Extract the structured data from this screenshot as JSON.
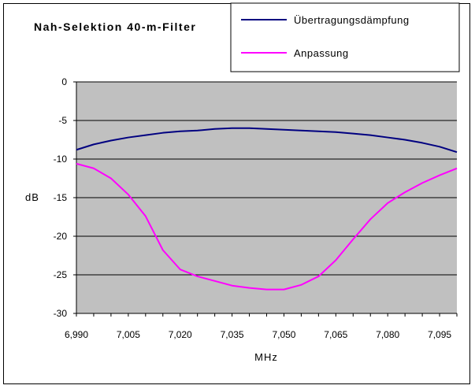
{
  "chart_data": {
    "type": "line",
    "title": "Nah-Selektion 40-m-Filter",
    "xlabel": "MHz",
    "ylabel": "dB",
    "xlim": [
      6.99,
      7.1
    ],
    "ylim": [
      -30,
      0
    ],
    "grid": true,
    "legend_position": "top-right",
    "x_ticks": [
      "6,990",
      "7,005",
      "7,020",
      "7,035",
      "7,050",
      "7,065",
      "7,080",
      "7,095"
    ],
    "x_tick_values": [
      6.99,
      7.005,
      7.02,
      7.035,
      7.05,
      7.065,
      7.08,
      7.095
    ],
    "y_ticks": [
      "0",
      "-5",
      "-10",
      "-15",
      "-20",
      "-25",
      "-30"
    ],
    "y_tick_values": [
      0,
      -5,
      -10,
      -15,
      -20,
      -25,
      -30
    ],
    "x": [
      6.99,
      6.995,
      7.0,
      7.005,
      7.01,
      7.015,
      7.02,
      7.025,
      7.03,
      7.035,
      7.04,
      7.045,
      7.05,
      7.055,
      7.06,
      7.065,
      7.07,
      7.075,
      7.08,
      7.085,
      7.09,
      7.095,
      7.1
    ],
    "series": [
      {
        "name": "Übertragungsdämpfung",
        "color": "#000080",
        "values": [
          -8.8,
          -8.1,
          -7.6,
          -7.2,
          -6.9,
          -6.6,
          -6.4,
          -6.3,
          -6.1,
          -6.0,
          -6.0,
          -6.1,
          -6.2,
          -6.3,
          -6.4,
          -6.5,
          -6.7,
          -6.9,
          -7.2,
          -7.5,
          -7.9,
          -8.4,
          -9.1
        ]
      },
      {
        "name": "Anpassung",
        "color": "#ff00ff",
        "values": [
          -10.6,
          -11.2,
          -12.5,
          -14.6,
          -17.4,
          -21.8,
          -24.3,
          -25.2,
          -25.8,
          -26.4,
          -26.7,
          -26.9,
          -26.9,
          -26.3,
          -25.2,
          -23.1,
          -20.4,
          -17.8,
          -15.7,
          -14.3,
          -13.1,
          -12.1,
          -11.2
        ]
      }
    ]
  },
  "colors": {
    "plot_background": "#c0c0c0",
    "grid": "#000000"
  }
}
